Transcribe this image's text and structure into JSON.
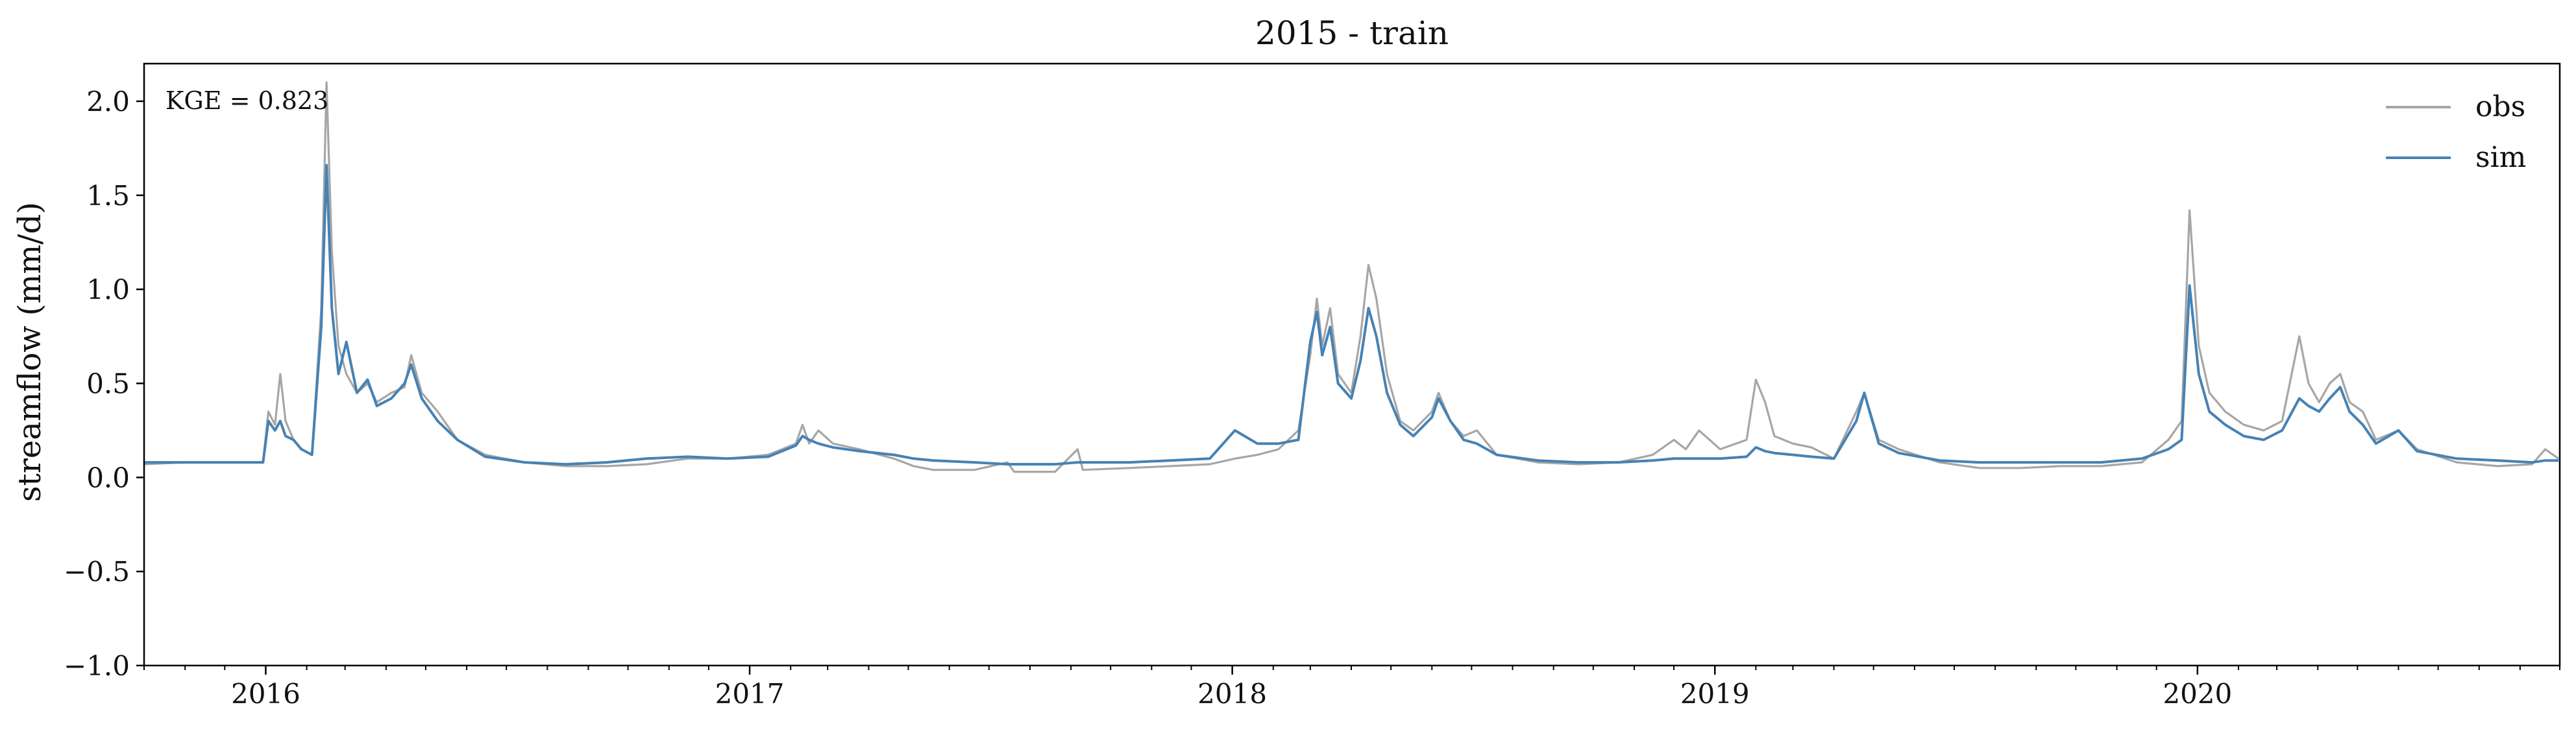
{
  "chart_data": {
    "type": "line",
    "title": "2015 - train",
    "ylabel": "streamflow (mm/d)",
    "xlabel": "",
    "annotation": "KGE = 0.823",
    "xlim": [
      "2015-10-01",
      "2020-09-30"
    ],
    "ylim": [
      -1.0,
      2.2
    ],
    "yticks": [
      -1.0,
      -0.5,
      0.0,
      0.5,
      1.0,
      1.5,
      2.0
    ],
    "ytick_labels": [
      "−1.0",
      "−0.5",
      "0.0",
      "0.5",
      "1.0",
      "1.5",
      "2.0"
    ],
    "xticks": [
      "2016-01-01",
      "2017-01-01",
      "2018-01-01",
      "2019-01-01",
      "2020-01-01"
    ],
    "xtick_labels": [
      "2016",
      "2017",
      "2018",
      "2019",
      "2020"
    ],
    "grid": false,
    "legend_position": "top-right",
    "series": [
      {
        "name": "obs",
        "color": "#a6a6a6",
        "points": [
          [
            "2015-10-01",
            0.07
          ],
          [
            "2015-11-01",
            0.08
          ],
          [
            "2015-12-01",
            0.08
          ],
          [
            "2015-12-30",
            0.08
          ],
          [
            "2016-01-03",
            0.35
          ],
          [
            "2016-01-08",
            0.28
          ],
          [
            "2016-01-12",
            0.55
          ],
          [
            "2016-01-16",
            0.3
          ],
          [
            "2016-01-22",
            0.2
          ],
          [
            "2016-01-28",
            0.15
          ],
          [
            "2016-02-05",
            0.12
          ],
          [
            "2016-02-12",
            0.9
          ],
          [
            "2016-02-16",
            2.1
          ],
          [
            "2016-02-20",
            1.2
          ],
          [
            "2016-02-25",
            0.7
          ],
          [
            "2016-03-02",
            0.55
          ],
          [
            "2016-03-10",
            0.45
          ],
          [
            "2016-03-18",
            0.5
          ],
          [
            "2016-03-25",
            0.4
          ],
          [
            "2016-04-05",
            0.45
          ],
          [
            "2016-04-15",
            0.48
          ],
          [
            "2016-04-20",
            0.65
          ],
          [
            "2016-04-28",
            0.45
          ],
          [
            "2016-05-10",
            0.35
          ],
          [
            "2016-05-25",
            0.2
          ],
          [
            "2016-06-15",
            0.12
          ],
          [
            "2016-07-15",
            0.08
          ],
          [
            "2016-08-15",
            0.06
          ],
          [
            "2016-09-15",
            0.06
          ],
          [
            "2016-10-15",
            0.07
          ],
          [
            "2016-11-15",
            0.1
          ],
          [
            "2016-12-15",
            0.1
          ],
          [
            "2017-01-15",
            0.12
          ],
          [
            "2017-02-05",
            0.18
          ],
          [
            "2017-02-10",
            0.28
          ],
          [
            "2017-02-15",
            0.18
          ],
          [
            "2017-02-22",
            0.25
          ],
          [
            "2017-03-05",
            0.18
          ],
          [
            "2017-03-25",
            0.15
          ],
          [
            "2017-04-20",
            0.1
          ],
          [
            "2017-05-05",
            0.06
          ],
          [
            "2017-05-20",
            0.04
          ],
          [
            "2017-06-20",
            0.04
          ],
          [
            "2017-07-15",
            0.08
          ],
          [
            "2017-07-20",
            0.03
          ],
          [
            "2017-08-20",
            0.03
          ],
          [
            "2017-09-06",
            0.15
          ],
          [
            "2017-09-10",
            0.04
          ],
          [
            "2017-10-15",
            0.05
          ],
          [
            "2017-11-15",
            0.06
          ],
          [
            "2017-12-15",
            0.07
          ],
          [
            "2018-01-03",
            0.1
          ],
          [
            "2018-01-20",
            0.12
          ],
          [
            "2018-02-05",
            0.15
          ],
          [
            "2018-02-20",
            0.25
          ],
          [
            "2018-03-01",
            0.65
          ],
          [
            "2018-03-06",
            0.95
          ],
          [
            "2018-03-10",
            0.7
          ],
          [
            "2018-03-16",
            0.9
          ],
          [
            "2018-03-22",
            0.55
          ],
          [
            "2018-04-01",
            0.45
          ],
          [
            "2018-04-08",
            0.75
          ],
          [
            "2018-04-14",
            1.13
          ],
          [
            "2018-04-20",
            0.95
          ],
          [
            "2018-04-28",
            0.55
          ],
          [
            "2018-05-08",
            0.3
          ],
          [
            "2018-05-18",
            0.25
          ],
          [
            "2018-06-01",
            0.35
          ],
          [
            "2018-06-06",
            0.45
          ],
          [
            "2018-06-15",
            0.3
          ],
          [
            "2018-06-25",
            0.22
          ],
          [
            "2018-07-05",
            0.25
          ],
          [
            "2018-07-20",
            0.12
          ],
          [
            "2018-08-20",
            0.08
          ],
          [
            "2018-09-20",
            0.07
          ],
          [
            "2018-10-20",
            0.08
          ],
          [
            "2018-11-15",
            0.12
          ],
          [
            "2018-12-01",
            0.2
          ],
          [
            "2018-12-10",
            0.15
          ],
          [
            "2018-12-20",
            0.25
          ],
          [
            "2019-01-05",
            0.15
          ],
          [
            "2019-01-25",
            0.2
          ],
          [
            "2019-02-01",
            0.52
          ],
          [
            "2019-02-08",
            0.4
          ],
          [
            "2019-02-15",
            0.22
          ],
          [
            "2019-03-01",
            0.18
          ],
          [
            "2019-03-15",
            0.16
          ],
          [
            "2019-04-01",
            0.1
          ],
          [
            "2019-04-18",
            0.35
          ],
          [
            "2019-04-24",
            0.45
          ],
          [
            "2019-05-05",
            0.2
          ],
          [
            "2019-05-20",
            0.15
          ],
          [
            "2019-06-20",
            0.08
          ],
          [
            "2019-07-20",
            0.05
          ],
          [
            "2019-08-20",
            0.05
          ],
          [
            "2019-09-20",
            0.06
          ],
          [
            "2019-10-20",
            0.06
          ],
          [
            "2019-11-20",
            0.08
          ],
          [
            "2019-12-10",
            0.2
          ],
          [
            "2019-12-20",
            0.3
          ],
          [
            "2019-12-26",
            1.42
          ],
          [
            "2020-01-02",
            0.7
          ],
          [
            "2020-01-10",
            0.45
          ],
          [
            "2020-01-22",
            0.35
          ],
          [
            "2020-02-05",
            0.28
          ],
          [
            "2020-02-20",
            0.25
          ],
          [
            "2020-03-05",
            0.3
          ],
          [
            "2020-03-18",
            0.75
          ],
          [
            "2020-03-25",
            0.5
          ],
          [
            "2020-04-02",
            0.4
          ],
          [
            "2020-04-10",
            0.5
          ],
          [
            "2020-04-18",
            0.55
          ],
          [
            "2020-04-25",
            0.4
          ],
          [
            "2020-05-05",
            0.35
          ],
          [
            "2020-05-15",
            0.2
          ],
          [
            "2020-06-01",
            0.25
          ],
          [
            "2020-06-15",
            0.15
          ],
          [
            "2020-07-15",
            0.08
          ],
          [
            "2020-08-15",
            0.06
          ],
          [
            "2020-09-10",
            0.07
          ],
          [
            "2020-09-20",
            0.15
          ],
          [
            "2020-09-30",
            0.1
          ]
        ]
      },
      {
        "name": "sim",
        "color": "#4682b4",
        "points": [
          [
            "2015-10-01",
            0.08
          ],
          [
            "2015-11-01",
            0.08
          ],
          [
            "2015-12-01",
            0.08
          ],
          [
            "2015-12-30",
            0.08
          ],
          [
            "2016-01-03",
            0.3
          ],
          [
            "2016-01-08",
            0.25
          ],
          [
            "2016-01-12",
            0.3
          ],
          [
            "2016-01-16",
            0.22
          ],
          [
            "2016-01-22",
            0.2
          ],
          [
            "2016-01-28",
            0.15
          ],
          [
            "2016-02-05",
            0.12
          ],
          [
            "2016-02-12",
            0.8
          ],
          [
            "2016-02-16",
            1.66
          ],
          [
            "2016-02-20",
            0.9
          ],
          [
            "2016-02-25",
            0.55
          ],
          [
            "2016-03-02",
            0.72
          ],
          [
            "2016-03-10",
            0.45
          ],
          [
            "2016-03-18",
            0.52
          ],
          [
            "2016-03-25",
            0.38
          ],
          [
            "2016-04-05",
            0.42
          ],
          [
            "2016-04-15",
            0.5
          ],
          [
            "2016-04-20",
            0.6
          ],
          [
            "2016-04-28",
            0.42
          ],
          [
            "2016-05-10",
            0.3
          ],
          [
            "2016-05-25",
            0.2
          ],
          [
            "2016-06-15",
            0.11
          ],
          [
            "2016-07-15",
            0.08
          ],
          [
            "2016-08-15",
            0.07
          ],
          [
            "2016-09-15",
            0.08
          ],
          [
            "2016-10-15",
            0.1
          ],
          [
            "2016-11-15",
            0.11
          ],
          [
            "2016-12-15",
            0.1
          ],
          [
            "2017-01-15",
            0.11
          ],
          [
            "2017-02-05",
            0.17
          ],
          [
            "2017-02-10",
            0.22
          ],
          [
            "2017-02-15",
            0.2
          ],
          [
            "2017-02-22",
            0.18
          ],
          [
            "2017-03-05",
            0.16
          ],
          [
            "2017-03-25",
            0.14
          ],
          [
            "2017-04-20",
            0.12
          ],
          [
            "2017-05-05",
            0.1
          ],
          [
            "2017-05-20",
            0.09
          ],
          [
            "2017-06-20",
            0.08
          ],
          [
            "2017-07-15",
            0.07
          ],
          [
            "2017-07-20",
            0.07
          ],
          [
            "2017-08-20",
            0.07
          ],
          [
            "2017-09-06",
            0.08
          ],
          [
            "2017-09-10",
            0.08
          ],
          [
            "2017-10-15",
            0.08
          ],
          [
            "2017-11-15",
            0.09
          ],
          [
            "2017-12-15",
            0.1
          ],
          [
            "2018-01-03",
            0.25
          ],
          [
            "2018-01-20",
            0.18
          ],
          [
            "2018-02-05",
            0.18
          ],
          [
            "2018-02-20",
            0.2
          ],
          [
            "2018-03-01",
            0.72
          ],
          [
            "2018-03-06",
            0.88
          ],
          [
            "2018-03-10",
            0.65
          ],
          [
            "2018-03-16",
            0.8
          ],
          [
            "2018-03-22",
            0.5
          ],
          [
            "2018-04-01",
            0.42
          ],
          [
            "2018-04-08",
            0.62
          ],
          [
            "2018-04-14",
            0.9
          ],
          [
            "2018-04-20",
            0.75
          ],
          [
            "2018-04-28",
            0.45
          ],
          [
            "2018-05-08",
            0.28
          ],
          [
            "2018-05-18",
            0.22
          ],
          [
            "2018-06-01",
            0.32
          ],
          [
            "2018-06-06",
            0.42
          ],
          [
            "2018-06-15",
            0.3
          ],
          [
            "2018-06-25",
            0.2
          ],
          [
            "2018-07-05",
            0.18
          ],
          [
            "2018-07-20",
            0.12
          ],
          [
            "2018-08-20",
            0.09
          ],
          [
            "2018-09-20",
            0.08
          ],
          [
            "2018-10-20",
            0.08
          ],
          [
            "2018-11-15",
            0.09
          ],
          [
            "2018-12-01",
            0.1
          ],
          [
            "2018-12-10",
            0.1
          ],
          [
            "2018-12-20",
            0.1
          ],
          [
            "2019-01-05",
            0.1
          ],
          [
            "2019-01-25",
            0.11
          ],
          [
            "2019-02-01",
            0.16
          ],
          [
            "2019-02-08",
            0.14
          ],
          [
            "2019-02-15",
            0.13
          ],
          [
            "2019-03-01",
            0.12
          ],
          [
            "2019-03-15",
            0.11
          ],
          [
            "2019-04-01",
            0.1
          ],
          [
            "2019-04-18",
            0.3
          ],
          [
            "2019-04-24",
            0.45
          ],
          [
            "2019-05-05",
            0.18
          ],
          [
            "2019-05-20",
            0.13
          ],
          [
            "2019-06-20",
            0.09
          ],
          [
            "2019-07-20",
            0.08
          ],
          [
            "2019-08-20",
            0.08
          ],
          [
            "2019-09-20",
            0.08
          ],
          [
            "2019-10-20",
            0.08
          ],
          [
            "2019-11-20",
            0.1
          ],
          [
            "2019-12-10",
            0.15
          ],
          [
            "2019-12-20",
            0.2
          ],
          [
            "2019-12-26",
            1.02
          ],
          [
            "2020-01-02",
            0.55
          ],
          [
            "2020-01-10",
            0.35
          ],
          [
            "2020-01-22",
            0.28
          ],
          [
            "2020-02-05",
            0.22
          ],
          [
            "2020-02-20",
            0.2
          ],
          [
            "2020-03-05",
            0.25
          ],
          [
            "2020-03-18",
            0.42
          ],
          [
            "2020-03-25",
            0.38
          ],
          [
            "2020-04-02",
            0.35
          ],
          [
            "2020-04-10",
            0.42
          ],
          [
            "2020-04-18",
            0.48
          ],
          [
            "2020-04-25",
            0.35
          ],
          [
            "2020-05-05",
            0.28
          ],
          [
            "2020-05-15",
            0.18
          ],
          [
            "2020-06-01",
            0.25
          ],
          [
            "2020-06-15",
            0.14
          ],
          [
            "2020-07-15",
            0.1
          ],
          [
            "2020-08-15",
            0.09
          ],
          [
            "2020-09-10",
            0.08
          ],
          [
            "2020-09-20",
            0.09
          ],
          [
            "2020-09-30",
            0.09
          ]
        ]
      }
    ]
  }
}
